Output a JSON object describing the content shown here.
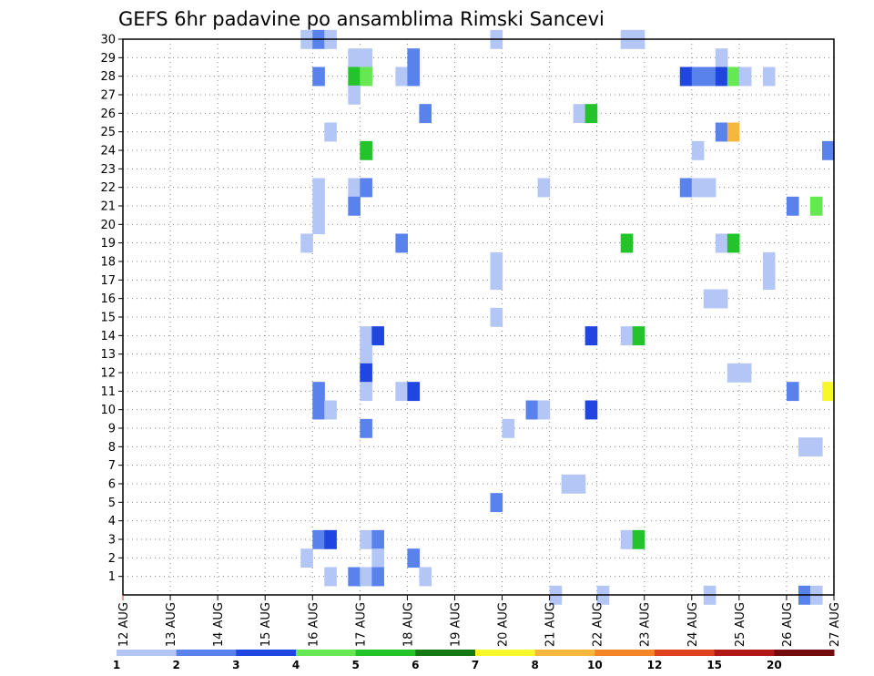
{
  "chart_data": {
    "type": "heatmap",
    "title": "GEFS 6hr padavine po ansamblima Rimski Sancevi",
    "xlabel": "",
    "ylabel": "",
    "x_tick_labels": [
      "12 AUG",
      "13 AUG",
      "14 AUG",
      "15 AUG",
      "16 AUG",
      "17 AUG",
      "18 AUG",
      "19 AUG",
      "20 AUG",
      "21 AUG",
      "22 AUG",
      "23 AUG",
      "24 AUG",
      "25 AUG",
      "26 AUG",
      "27 AUG"
    ],
    "x_range_days": [
      0,
      15
    ],
    "y_tick_labels": [
      "1",
      "2",
      "3",
      "4",
      "5",
      "6",
      "7",
      "8",
      "9",
      "10",
      "11",
      "12",
      "13",
      "14",
      "15",
      "16",
      "17",
      "18",
      "19",
      "20",
      "21",
      "22",
      "23",
      "24",
      "25",
      "26",
      "27",
      "28",
      "29",
      "30"
    ],
    "ylim": [
      0,
      30
    ],
    "grid": true,
    "legend_placement": "bottom",
    "color_levels": [
      1,
      2,
      3,
      4,
      5,
      6,
      7,
      8,
      10,
      12,
      15,
      20
    ],
    "color_scale": [
      "#b3c6f5",
      "#5a82ec",
      "#1f46e0",
      "#66e853",
      "#22c42a",
      "#137a13",
      "#f7f72a",
      "#f6b83c",
      "#f6852a",
      "#e0421f",
      "#b31818",
      "#730c0c"
    ],
    "legend_labels": [
      "1",
      "2",
      "3",
      "4",
      "5",
      "6",
      "7",
      "8",
      "10",
      "12",
      "15",
      "20"
    ],
    "cells": [
      {
        "m": 30,
        "day": 3.75,
        "c": 0
      },
      {
        "m": 30,
        "day": 4,
        "c": 1
      },
      {
        "m": 30,
        "day": 4.25,
        "c": 0
      },
      {
        "m": 30,
        "day": 7.75,
        "c": 0
      },
      {
        "m": 30,
        "day": 10.5,
        "c": 0
      },
      {
        "m": 30,
        "day": 10.75,
        "c": 0
      },
      {
        "m": 29,
        "day": 4.75,
        "c": 0
      },
      {
        "m": 29,
        "day": 5,
        "c": 0
      },
      {
        "m": 29,
        "day": 6,
        "c": 1
      },
      {
        "m": 29,
        "day": 12.5,
        "c": 0
      },
      {
        "m": 28,
        "day": 4,
        "c": 1
      },
      {
        "m": 28,
        "day": 4.75,
        "c": 4
      },
      {
        "m": 28,
        "day": 5,
        "c": 3
      },
      {
        "m": 28,
        "day": 5.75,
        "c": 0
      },
      {
        "m": 28,
        "day": 6,
        "c": 1
      },
      {
        "m": 28,
        "day": 11.75,
        "c": 2
      },
      {
        "m": 28,
        "day": 12,
        "c": 1
      },
      {
        "m": 28,
        "day": 12.25,
        "c": 1
      },
      {
        "m": 28,
        "day": 12.5,
        "c": 2
      },
      {
        "m": 28,
        "day": 12.75,
        "c": 3
      },
      {
        "m": 28,
        "day": 13,
        "c": 0
      },
      {
        "m": 28,
        "day": 13.5,
        "c": 0
      },
      {
        "m": 27,
        "day": 4.75,
        "c": 0
      },
      {
        "m": 26,
        "day": 6.25,
        "c": 1
      },
      {
        "m": 26,
        "day": 9.5,
        "c": 0
      },
      {
        "m": 26,
        "day": 9.75,
        "c": 4
      },
      {
        "m": 25,
        "day": 4.25,
        "c": 0
      },
      {
        "m": 25,
        "day": 12.5,
        "c": 1
      },
      {
        "m": 25,
        "day": 12.75,
        "c": 7
      },
      {
        "m": 24,
        "day": 5,
        "c": 4
      },
      {
        "m": 24,
        "day": 12,
        "c": 0
      },
      {
        "m": 24,
        "day": 14.75,
        "c": 1
      },
      {
        "m": 22,
        "day": 4,
        "c": 0
      },
      {
        "m": 22,
        "day": 4.75,
        "c": 0
      },
      {
        "m": 22,
        "day": 5,
        "c": 1
      },
      {
        "m": 22,
        "day": 8.75,
        "c": 0
      },
      {
        "m": 22,
        "day": 11.75,
        "c": 1
      },
      {
        "m": 22,
        "day": 12,
        "c": 0
      },
      {
        "m": 22,
        "day": 12.25,
        "c": 0
      },
      {
        "m": 21,
        "day": 4,
        "c": 0
      },
      {
        "m": 21,
        "day": 4.75,
        "c": 1
      },
      {
        "m": 21,
        "day": 14,
        "c": 1
      },
      {
        "m": 21,
        "day": 14.5,
        "c": 3
      },
      {
        "m": 20,
        "day": 4,
        "c": 0
      },
      {
        "m": 19,
        "day": 3.75,
        "c": 0
      },
      {
        "m": 19,
        "day": 5.75,
        "c": 1
      },
      {
        "m": 19,
        "day": 10.5,
        "c": 4
      },
      {
        "m": 19,
        "day": 12.5,
        "c": 0
      },
      {
        "m": 19,
        "day": 12.75,
        "c": 4
      },
      {
        "m": 18,
        "day": 7.75,
        "c": 0
      },
      {
        "m": 18,
        "day": 13.5,
        "c": 0
      },
      {
        "m": 17,
        "day": 7.75,
        "c": 0
      },
      {
        "m": 17,
        "day": 13.5,
        "c": 0
      },
      {
        "m": 16,
        "day": 12.25,
        "c": 0
      },
      {
        "m": 16,
        "day": 12.5,
        "c": 0
      },
      {
        "m": 15,
        "day": 7.75,
        "c": 0
      },
      {
        "m": 14,
        "day": 5,
        "c": 0
      },
      {
        "m": 14,
        "day": 5.25,
        "c": 2
      },
      {
        "m": 14,
        "day": 9.75,
        "c": 2
      },
      {
        "m": 14,
        "day": 10.5,
        "c": 0
      },
      {
        "m": 14,
        "day": 10.75,
        "c": 4
      },
      {
        "m": 13,
        "day": 5,
        "c": 0
      },
      {
        "m": 12,
        "day": 5,
        "c": 2
      },
      {
        "m": 12,
        "day": 12.75,
        "c": 0
      },
      {
        "m": 12,
        "day": 13,
        "c": 0
      },
      {
        "m": 11,
        "day": 4,
        "c": 1
      },
      {
        "m": 11,
        "day": 5,
        "c": 0
      },
      {
        "m": 11,
        "day": 5.75,
        "c": 0
      },
      {
        "m": 11,
        "day": 6,
        "c": 2
      },
      {
        "m": 11,
        "day": 14,
        "c": 1
      },
      {
        "m": 11,
        "day": 14.75,
        "c": 6
      },
      {
        "m": 10,
        "day": 4,
        "c": 1
      },
      {
        "m": 10,
        "day": 4.25,
        "c": 0
      },
      {
        "m": 10,
        "day": 8.5,
        "c": 1
      },
      {
        "m": 10,
        "day": 8.75,
        "c": 0
      },
      {
        "m": 10,
        "day": 9.75,
        "c": 2
      },
      {
        "m": 9,
        "day": 5,
        "c": 1
      },
      {
        "m": 9,
        "day": 8,
        "c": 0
      },
      {
        "m": 8,
        "day": 14.25,
        "c": 0
      },
      {
        "m": 8,
        "day": 14.5,
        "c": 0
      },
      {
        "m": 6,
        "day": 9.25,
        "c": 0
      },
      {
        "m": 6,
        "day": 9.5,
        "c": 0
      },
      {
        "m": 5,
        "day": 7.75,
        "c": 1
      },
      {
        "m": 3,
        "day": 4,
        "c": 1
      },
      {
        "m": 3,
        "day": 4.25,
        "c": 2
      },
      {
        "m": 3,
        "day": 5,
        "c": 0
      },
      {
        "m": 3,
        "day": 5.25,
        "c": 1
      },
      {
        "m": 3,
        "day": 10.5,
        "c": 0
      },
      {
        "m": 3,
        "day": 10.75,
        "c": 4
      },
      {
        "m": 2,
        "day": 3.75,
        "c": 0
      },
      {
        "m": 2,
        "day": 5.25,
        "c": 0
      },
      {
        "m": 2,
        "day": 6,
        "c": 1
      },
      {
        "m": 1,
        "day": 4.25,
        "c": 0
      },
      {
        "m": 1,
        "day": 4.75,
        "c": 1
      },
      {
        "m": 1,
        "day": 5,
        "c": 0
      },
      {
        "m": 1,
        "day": 5.25,
        "c": 1
      },
      {
        "m": 1,
        "day": 6.25,
        "c": 0
      },
      {
        "m": 0,
        "day": 9,
        "c": 0
      },
      {
        "m": 0,
        "day": 10,
        "c": 0
      },
      {
        "m": 0,
        "day": 12.25,
        "c": 0
      },
      {
        "m": 0,
        "day": 14.25,
        "c": 1
      },
      {
        "m": 0,
        "day": 14.5,
        "c": 0
      }
    ]
  }
}
